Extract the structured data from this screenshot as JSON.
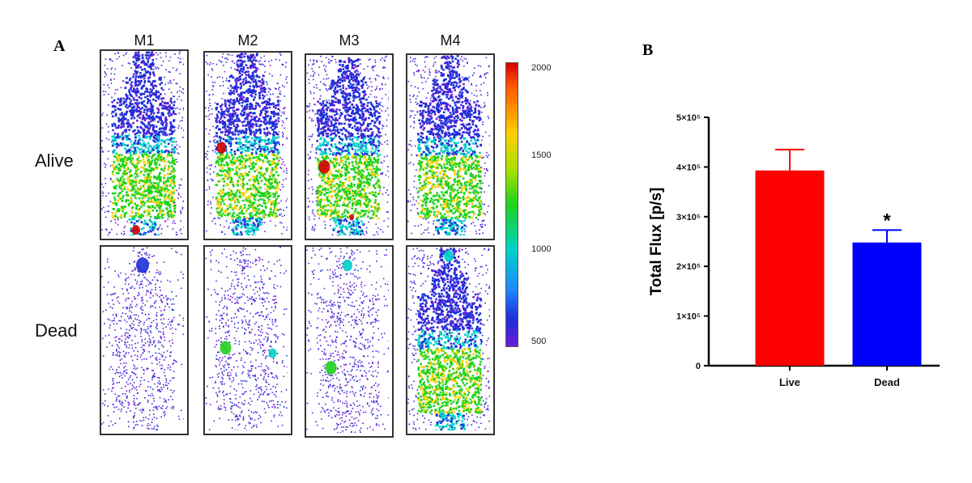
{
  "panel_a": {
    "letter": "A",
    "columns": [
      "M1",
      "M2",
      "M3",
      "M4"
    ],
    "rows": [
      "Alive",
      "Dead"
    ],
    "colorbar": {
      "ticks": [
        "2000",
        "1500",
        "1000",
        "500"
      ],
      "colors": [
        "#d50000",
        "#ffd000",
        "#1ed21e",
        "#00d2c8",
        "#1e2fd8",
        "#6a1ed8"
      ]
    }
  },
  "panel_b": {
    "letter": "B"
  },
  "chart_data": {
    "type": "bar",
    "categories": [
      "Live",
      "Dead"
    ],
    "values": [
      393000,
      248000
    ],
    "errors": [
      42000,
      25000
    ],
    "colors": [
      "#ff0000",
      "#0000ff"
    ],
    "ylabel": "Total Flux [p/s]",
    "ylim": [
      0,
      500000
    ],
    "yticks": [
      0,
      100000,
      200000,
      300000,
      400000,
      500000
    ],
    "ytick_labels": [
      "0",
      "1×10⁵",
      "2×10⁵",
      "3×10⁵",
      "4×10⁵",
      "5×10⁵"
    ],
    "annotations": [
      {
        "category": "Dead",
        "text": "*"
      }
    ],
    "grid": false
  }
}
